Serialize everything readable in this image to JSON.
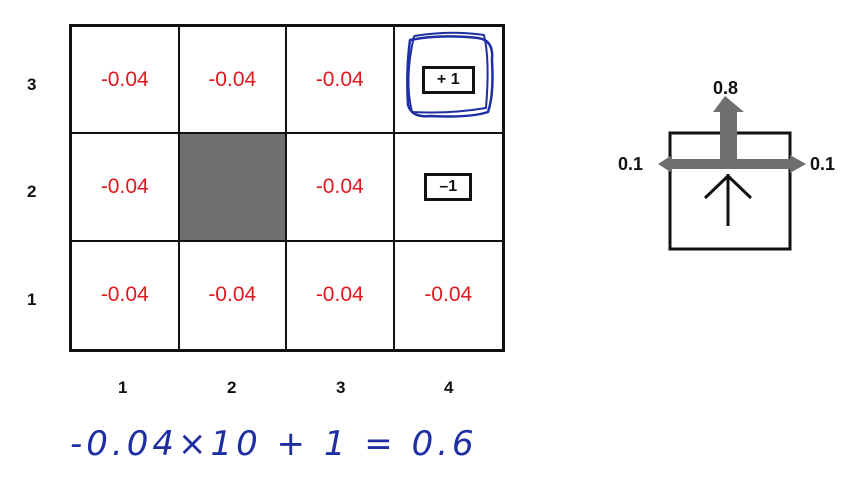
{
  "grid": {
    "rows": [
      {
        "label": "3",
        "cells": [
          {
            "text": "-0.04",
            "kind": "reward"
          },
          {
            "text": "-0.04",
            "kind": "reward"
          },
          {
            "text": "-0.04",
            "kind": "reward"
          },
          {
            "text": "+ 1",
            "kind": "terminal"
          }
        ]
      },
      {
        "label": "2",
        "cells": [
          {
            "text": "-0.04",
            "kind": "reward"
          },
          {
            "text": "",
            "kind": "wall"
          },
          {
            "text": "-0.04",
            "kind": "reward"
          },
          {
            "text": "–1",
            "kind": "terminal"
          }
        ]
      },
      {
        "label": "1",
        "cells": [
          {
            "text": "-0.04",
            "kind": "reward"
          },
          {
            "text": "-0.04",
            "kind": "reward"
          },
          {
            "text": "-0.04",
            "kind": "reward"
          },
          {
            "text": "-0.04",
            "kind": "reward"
          }
        ]
      }
    ],
    "col_labels": [
      "1",
      "2",
      "3",
      "4"
    ],
    "colors": {
      "reward": "#e0191e",
      "wall": "#6d6f70",
      "ink": "#1f2fa3"
    }
  },
  "action_model": {
    "forward": "0.8",
    "left": "0.1",
    "right": "0.1"
  },
  "handwritten": {
    "equation": "-0.04×10 + 1 = 0.6"
  }
}
